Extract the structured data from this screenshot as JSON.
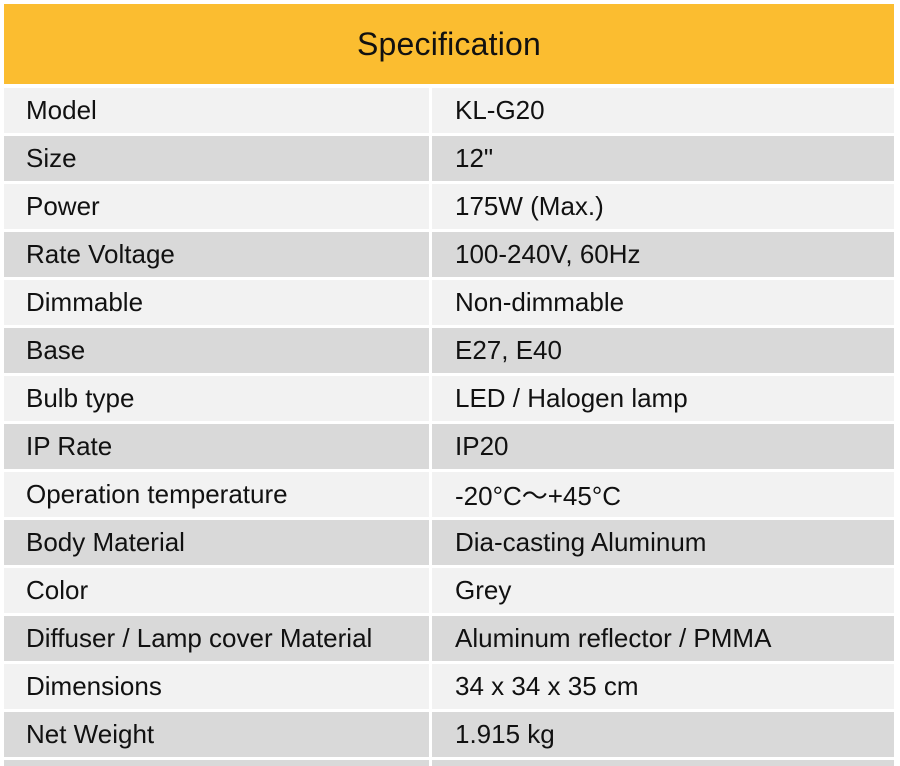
{
  "title": "Specification",
  "colors": {
    "header_bg": "#fbbd30",
    "row_light": "#f2f2f2",
    "row_dark": "#d9d9d9"
  },
  "rows": [
    {
      "label": "Model",
      "value": "KL-G20"
    },
    {
      "label": "Size",
      "value": "12\""
    },
    {
      "label": "Power",
      "value": "175W (Max.)"
    },
    {
      "label": "Rate Voltage",
      "value": "100-240V, 60Hz"
    },
    {
      "label": "Dimmable",
      "value": "Non-dimmable"
    },
    {
      "label": "Base",
      "value": "E27, E40"
    },
    {
      "label": "Bulb type",
      "value": "LED / Halogen lamp"
    },
    {
      "label": "IP Rate",
      "value": "IP20"
    },
    {
      "label": "Operation temperature",
      "value": "-20°C～+45°C"
    },
    {
      "label": "Body Material",
      "value": "Dia-casting Aluminum"
    },
    {
      "label": "Color",
      "value": "Grey"
    },
    {
      "label": "Diffuser / Lamp cover Material",
      "value": "Aluminum reflector / PMMA"
    },
    {
      "label": "Dimensions",
      "value": "34 x 34 x 35 cm"
    },
    {
      "label": "Net Weight",
      "value": "1.915 kg"
    }
  ]
}
